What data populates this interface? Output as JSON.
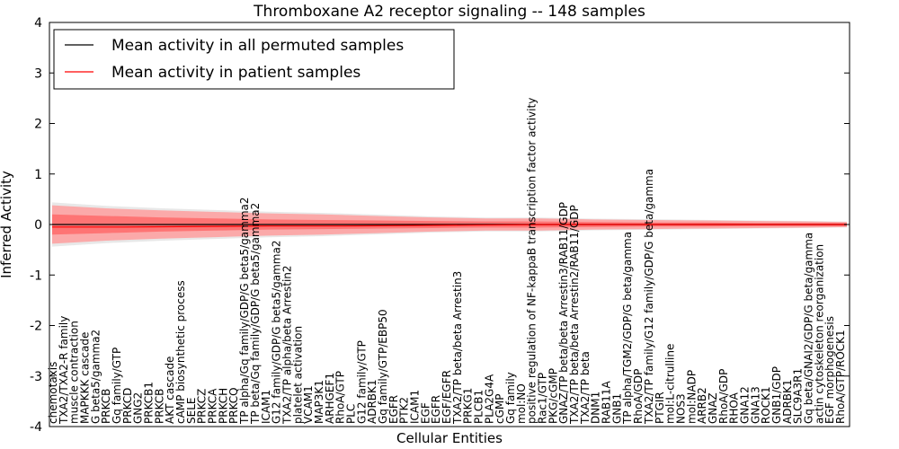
{
  "chart_data": {
    "type": "line",
    "title": "Thromboxane A2 receptor signaling -- 148 samples",
    "xlabel": "Cellular Entities",
    "ylabel": "Inferred Activity",
    "ylim": [
      -4,
      4
    ],
    "yticks": [
      -4,
      -3,
      -2,
      -1,
      0,
      1,
      2,
      3,
      4
    ],
    "grid": false,
    "legend_position": "top-left",
    "series": [
      {
        "name": "Mean activity in all permuted samples",
        "color": "#000000",
        "values": [
          0.0,
          0.0,
          0.0,
          0.0,
          0.0,
          0.0,
          0.0,
          0.0,
          0.0,
          0.0,
          0.0,
          0.0
        ]
      },
      {
        "name": "Mean activity in patient samples",
        "color": "#ff0000",
        "values": [
          -0.05,
          -0.05,
          -0.04,
          -0.03,
          -0.03,
          -0.02,
          -0.01,
          0.0,
          0.0,
          0.0,
          0.0,
          0.0
        ]
      }
    ],
    "band_control": [
      0,
      60,
      120,
      180,
      240,
      300,
      360,
      420,
      480,
      540,
      600,
      660,
      720,
      780,
      840,
      880
    ],
    "band_outer": [
      0.38,
      0.32,
      0.28,
      0.25,
      0.22,
      0.2,
      0.17,
      0.14,
      0.12,
      0.12,
      0.1,
      0.09,
      0.08,
      0.07,
      0.06,
      0.05
    ],
    "band_inner": [
      0.2,
      0.17,
      0.14,
      0.12,
      0.1,
      0.09,
      0.08,
      0.07,
      0.06,
      0.06,
      0.05,
      0.04,
      0.04,
      0.03,
      0.03,
      0.03
    ],
    "entities": [
      "chemotaxis",
      "TXA2/TXA2-R family",
      "muscle contraction",
      "MAPKKK cascade",
      "G beta5/gamma2",
      "PRKCB",
      "Gq family/GTP",
      "PRKCD",
      "GNG2",
      "PRKCB1",
      "PRKCB",
      "AKT cascade",
      "cAMP biosynthetic process",
      "SELE",
      "PRKCZ",
      "PRKCA",
      "PRKCH",
      "PRKCQ",
      "TP alpha/Gq family/GDP/G beta5/gamma2",
      "TP beta/Gq family/GDP/G beta5/gamma2",
      "ICAM1",
      "G12 family/GDP/G beta5/gamma2",
      "TXA2/TP alpha/beta Arrestin2",
      "platelet activation",
      "VCAM1",
      "MAP3K1",
      "ARHGEF1",
      "RhoA/GTP",
      "PLC",
      "G12 family/GTP",
      "ADRBK1",
      "Gq family/GTP/EBP50",
      "EGFR",
      "PTK2",
      "ICAM1",
      "EGF",
      "EGFR",
      "EGF/EGFR",
      "TXA2/TP beta/beta Arrestin3",
      "PRKG1",
      "PLCB1",
      "PLA2G4A",
      "cGMP",
      "Gq family",
      "mol:NO",
      "positive regulation of NF-kappaB transcription factor activity",
      "Rac1/GTP",
      "PKG/cGMP",
      "GNAZ/TP beta/beta Arrestin3/RAB11/GDP",
      "TXA2/TP beta/beta Arrestin2/RAB11/GDP",
      "TXA2/TP beta",
      "DNM1",
      "RAB11A",
      "GNB1",
      "TP alpha/TGM2/GDP/G beta/gamma",
      "RhoA/GDP",
      "TXA2/TP family/G12 family/GDP/G beta/gamma",
      "PTGIR",
      "mol:L-citrulline",
      "NOS3",
      "mol:NADP",
      "ARRB2",
      "GNAZ",
      "RhoA/GDP",
      "RHOA",
      "GNA12",
      "GNA13",
      "ROCK1",
      "GNB1/GDP",
      "ADRBK1",
      "SLC9A3R1",
      "Gq beta/GNAI2/GDP/G beta/gamma",
      "actin cytoskeleton reorganization",
      "EGF morphogenesis",
      "RhoA/GTP/ROCK1"
    ],
    "legend_labels": [
      "Mean activity in all permuted samples",
      "Mean activity in patient samples"
    ]
  }
}
